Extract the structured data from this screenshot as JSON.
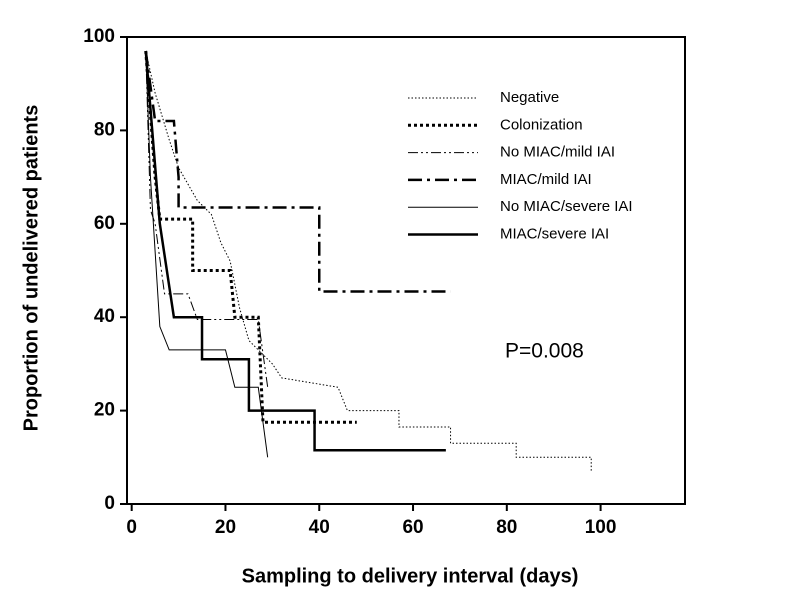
{
  "chart_data": {
    "type": "line",
    "xlabel": "Sampling to delivery interval (days)",
    "ylabel": "Proportion of undelivered patients",
    "annotation": "P=0.008",
    "xlim": [
      -1,
      118
    ],
    "ylim": [
      0,
      100
    ],
    "xticks": [
      0,
      20,
      40,
      60,
      80,
      100
    ],
    "yticks": [
      0,
      20,
      40,
      60,
      80,
      100
    ],
    "series": [
      {
        "name": "Negative",
        "color": "#000000",
        "linestyle": "dotted",
        "linewidth": 1,
        "x": [
          3,
          5,
          8,
          10,
          14,
          17,
          19,
          21,
          23,
          25,
          28,
          30,
          32,
          38,
          44,
          46,
          57,
          57,
          68,
          68,
          82,
          82,
          98,
          98
        ],
        "values": [
          97,
          88,
          78,
          72,
          65,
          62,
          56,
          52,
          42,
          35,
          32,
          30,
          27,
          26,
          25,
          20,
          20,
          16.5,
          16.5,
          13,
          13,
          10,
          10,
          7
        ]
      },
      {
        "name": "Colonization",
        "color": "#000000",
        "linestyle": "dotted",
        "linewidth": 3,
        "x": [
          3,
          5,
          6,
          13,
          13,
          21,
          22,
          27,
          28,
          48
        ],
        "values": [
          97,
          70,
          61,
          61,
          50,
          50,
          40,
          40,
          17.5,
          17.5
        ]
      },
      {
        "name": "No MIAC/mild IAI",
        "color": "#000000",
        "linestyle": "dashdotdot",
        "linewidth": 1,
        "x": [
          3,
          4,
          5,
          7,
          12,
          14,
          27,
          29
        ],
        "values": [
          97,
          63,
          60,
          45,
          45,
          39.5,
          39.5,
          25
        ]
      },
      {
        "name": "MIAC/mild IAI",
        "color": "#000000",
        "linestyle": "dashdot",
        "linewidth": 2.5,
        "x": [
          3,
          5,
          9,
          10,
          10,
          40,
          40,
          68
        ],
        "values": [
          97,
          82,
          82,
          70,
          63.5,
          63.5,
          45.5,
          45.5
        ]
      },
      {
        "name": "No MIAC/severe IAI",
        "color": "#000000",
        "linestyle": "solid",
        "linewidth": 1,
        "x": [
          3,
          4,
          6,
          8,
          20,
          22,
          27,
          29
        ],
        "values": [
          97,
          70,
          38,
          33,
          33,
          25,
          25,
          10
        ]
      },
      {
        "name": "MIAC/severe IAI",
        "color": "#000000",
        "linestyle": "solid",
        "linewidth": 2.5,
        "x": [
          3,
          6,
          9,
          15,
          15,
          25,
          25,
          39,
          39,
          67
        ],
        "values": [
          97,
          60,
          40,
          40,
          31,
          31,
          20,
          20,
          11.5,
          11.5
        ]
      }
    ]
  }
}
